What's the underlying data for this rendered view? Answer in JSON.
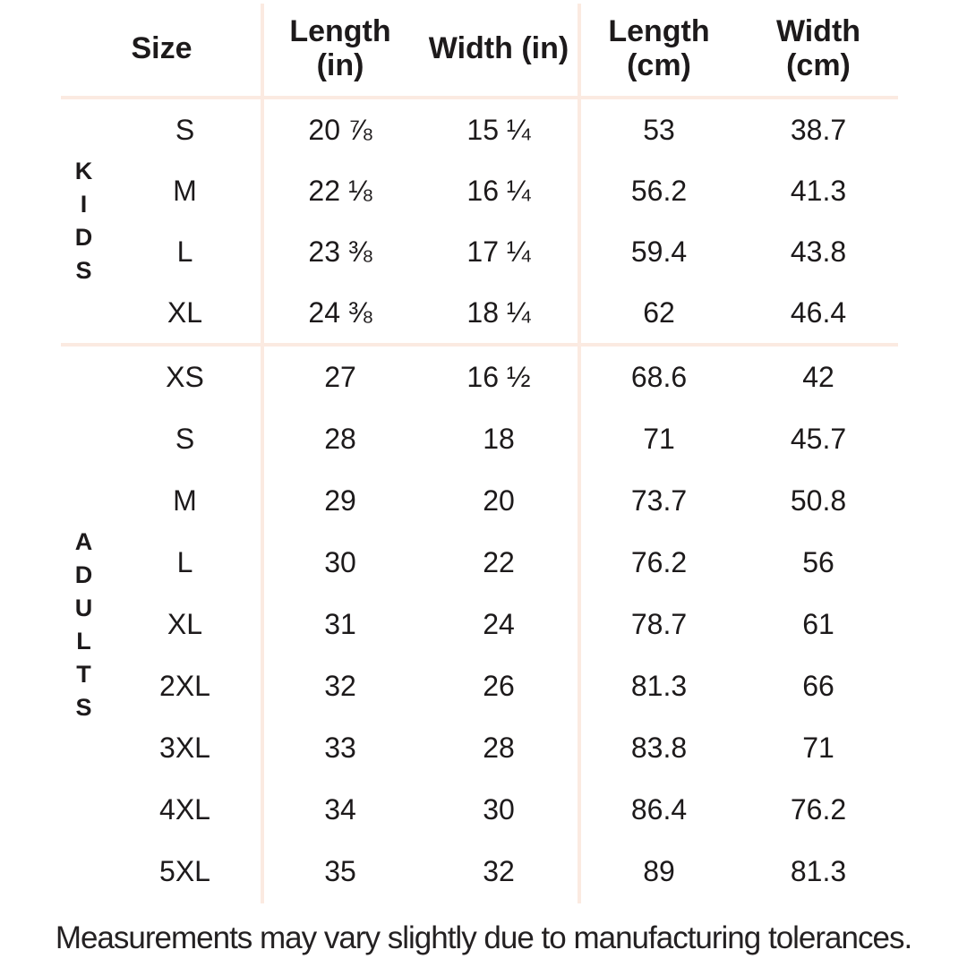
{
  "colors": {
    "background": "#ffffff",
    "divider": "#fbeae1",
    "text": "#1d1a1b"
  },
  "chart_data": {
    "type": "table",
    "header": {
      "size": {
        "line1": "Size",
        "line2": ""
      },
      "length_in": {
        "line1": "Length",
        "line2": "(in)"
      },
      "width_in": {
        "line1": "Width (in)",
        "line2": ""
      },
      "length_cm": {
        "line1": "Length",
        "line2": "(cm)"
      },
      "width_cm": {
        "line1": "Width",
        "line2": "(cm)"
      }
    },
    "sections": [
      {
        "group": "KIDS",
        "rows": [
          {
            "size": "S",
            "length_in": "20 ⅞",
            "width_in": "15 ¼",
            "length_cm": "53",
            "width_cm": "38.7"
          },
          {
            "size": "M",
            "length_in": "22 ⅛",
            "width_in": "16 ¼",
            "length_cm": "56.2",
            "width_cm": "41.3"
          },
          {
            "size": "L",
            "length_in": "23 ⅜",
            "width_in": "17 ¼",
            "length_cm": "59.4",
            "width_cm": "43.8"
          },
          {
            "size": "XL",
            "length_in": "24 ⅜",
            "width_in": "18 ¼",
            "length_cm": "62",
            "width_cm": "46.4"
          }
        ]
      },
      {
        "group": "ADULTS",
        "rows": [
          {
            "size": "XS",
            "length_in": "27",
            "width_in": "16 ½",
            "length_cm": "68.6",
            "width_cm": "42"
          },
          {
            "size": "S",
            "length_in": "28",
            "width_in": "18",
            "length_cm": "71",
            "width_cm": "45.7"
          },
          {
            "size": "M",
            "length_in": "29",
            "width_in": "20",
            "length_cm": "73.7",
            "width_cm": "50.8"
          },
          {
            "size": "L",
            "length_in": "30",
            "width_in": "22",
            "length_cm": "76.2",
            "width_cm": "56"
          },
          {
            "size": "XL",
            "length_in": "31",
            "width_in": "24",
            "length_cm": "78.7",
            "width_cm": "61"
          },
          {
            "size": "2XL",
            "length_in": "32",
            "width_in": "26",
            "length_cm": "81.3",
            "width_cm": "66"
          },
          {
            "size": "3XL",
            "length_in": "33",
            "width_in": "28",
            "length_cm": "83.8",
            "width_cm": "71"
          },
          {
            "size": "4XL",
            "length_in": "34",
            "width_in": "30",
            "length_cm": "86.4",
            "width_cm": "76.2"
          },
          {
            "size": "5XL",
            "length_in": "35",
            "width_in": "32",
            "length_cm": "89",
            "width_cm": "81.3"
          }
        ]
      }
    ],
    "footer": "Measurements may vary slightly due to manufacturing tolerances."
  }
}
